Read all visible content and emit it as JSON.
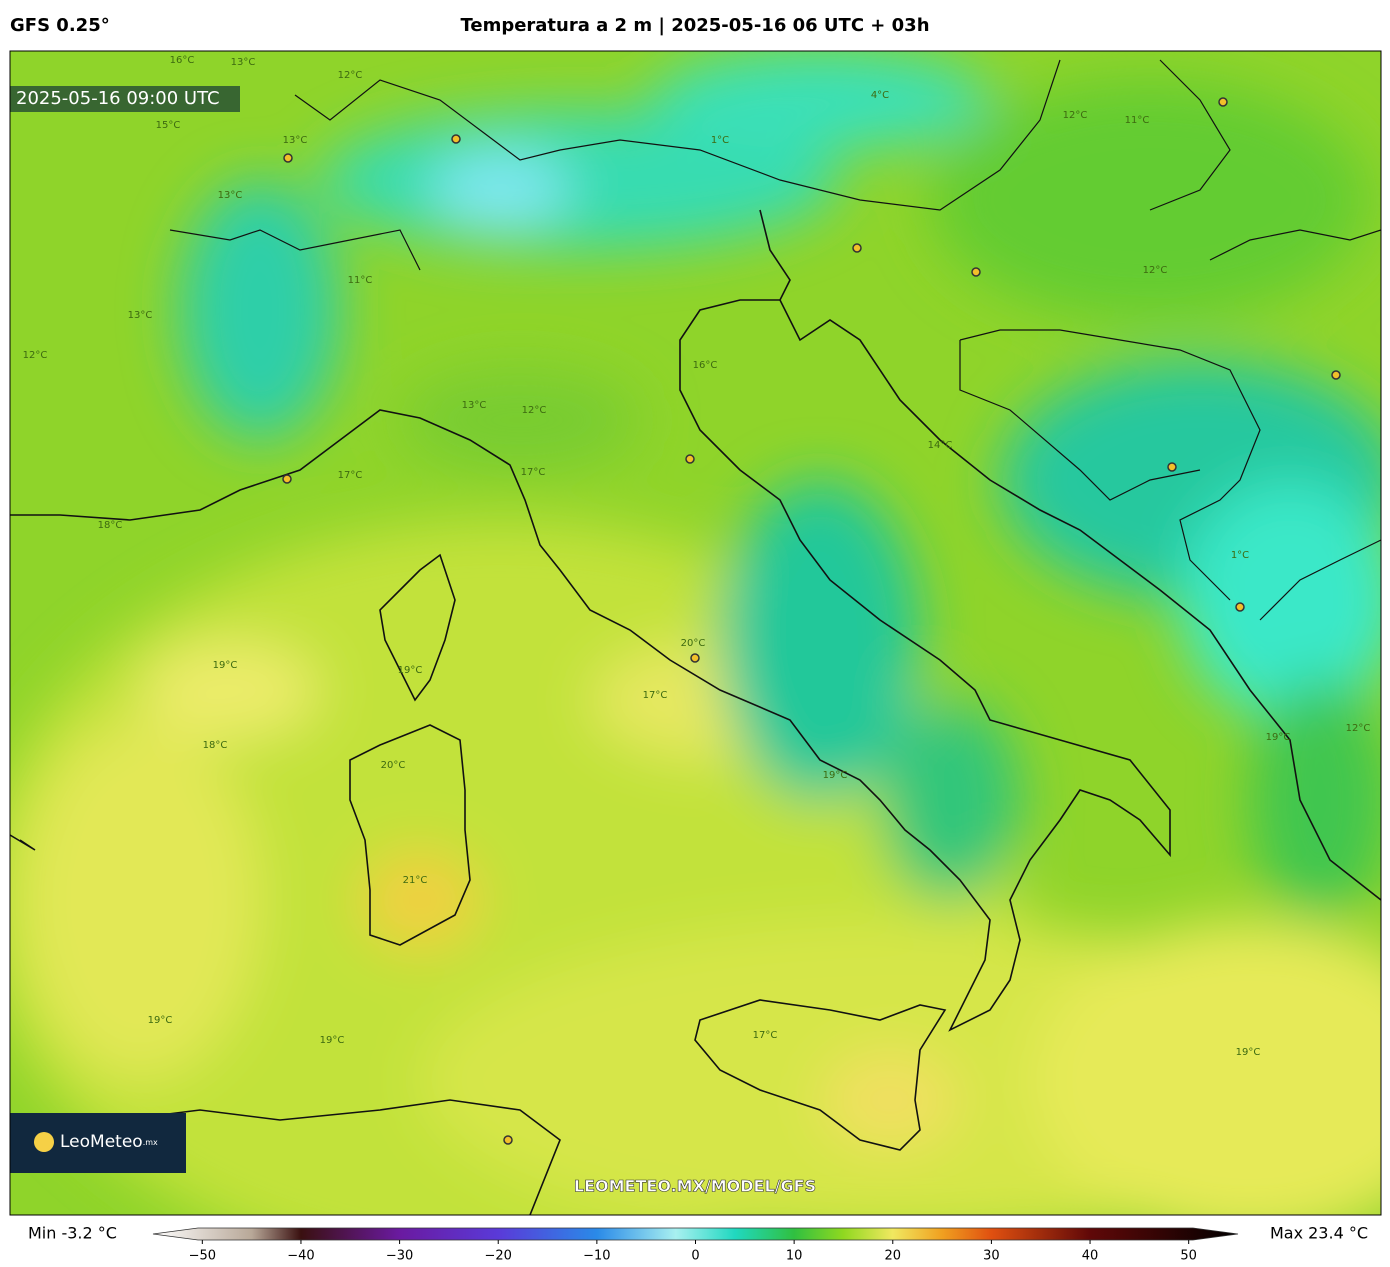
{
  "header": {
    "model": "GFS 0.25°",
    "title": "Temperatura a 2 m | 2025-05-16 06 UTC + 03h"
  },
  "map": {
    "valid_time": "2025-05-16 09:00 UTC",
    "watermark": "LEOMETEO.MX/MODEL/GFS",
    "logo": "LeoMeteo",
    "logo_suffix": ".mx",
    "contour_labels": [
      "16°C",
      "13°C",
      "12°C",
      "15°C",
      "13°C",
      "13°C",
      "11°C",
      "13°C",
      "12°C",
      "13°C",
      "12°C",
      "17°C",
      "17°C",
      "18°C",
      "19°C",
      "18°C",
      "19°C",
      "20°C",
      "17°C",
      "20°C",
      "21°C",
      "19°C",
      "19°C",
      "19°C",
      "12°C",
      "12°C",
      "11°C",
      "1°C",
      "19°C",
      "12°C",
      "1°C",
      "4°C",
      "16°C",
      "14°C",
      "19°C",
      "17°C"
    ]
  },
  "colorbar": {
    "min_label": "Min -3.2 °C",
    "max_label": "Max 23.4 °C",
    "lim": [
      -55,
      55
    ],
    "ticks": [
      {
        "value": -50,
        "label": "−50"
      },
      {
        "value": -40,
        "label": "−40"
      },
      {
        "value": -30,
        "label": "−30"
      },
      {
        "value": -20,
        "label": "−20"
      },
      {
        "value": -10,
        "label": "−10"
      },
      0,
      10,
      20,
      30,
      40,
      50
    ],
    "stops": [
      [
        -55,
        "#ffffff"
      ],
      [
        -45,
        "#b8a898"
      ],
      [
        -40,
        "#3a1010"
      ],
      [
        -30,
        "#6a1aa0"
      ],
      [
        -20,
        "#5a3ad8"
      ],
      [
        -10,
        "#2a8ae8"
      ],
      [
        -2,
        "#a8f0f0"
      ],
      [
        4,
        "#20d8c0"
      ],
      [
        10,
        "#30c040"
      ],
      [
        15,
        "#90d820"
      ],
      [
        20,
        "#f0e860"
      ],
      [
        25,
        "#f0a020"
      ],
      [
        30,
        "#e05010"
      ],
      [
        40,
        "#600808"
      ],
      [
        55,
        "#000000"
      ]
    ]
  }
}
